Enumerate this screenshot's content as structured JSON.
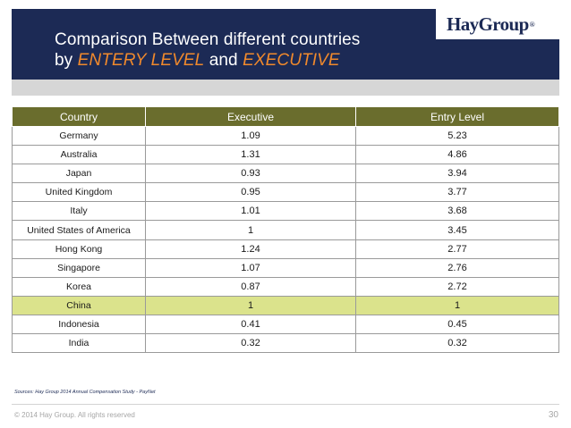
{
  "slide": {
    "title_line1": "Comparison Between different countries",
    "title_prefix": "by ",
    "title_em1": "ENTERY LEVEL",
    "title_mid": " and ",
    "title_em2": "EXECUTIVE",
    "logo_text": "HayGroup",
    "logo_mark": "®"
  },
  "table": {
    "headers": [
      "Country",
      "Executive",
      "Entry Level"
    ],
    "rows": [
      {
        "country": "Germany",
        "executive": "1.09",
        "entry": "5.23"
      },
      {
        "country": "Australia",
        "executive": "1.31",
        "entry": "4.86"
      },
      {
        "country": "Japan",
        "executive": "0.93",
        "entry": "3.94"
      },
      {
        "country": "United Kingdom",
        "executive": "0.95",
        "entry": "3.77"
      },
      {
        "country": "Italy",
        "executive": "1.01",
        "entry": "3.68"
      },
      {
        "country": "United States of America",
        "executive": "1",
        "entry": "3.45"
      },
      {
        "country": "Hong Kong",
        "executive": "1.24",
        "entry": "2.77"
      },
      {
        "country": "Singapore",
        "executive": "1.07",
        "entry": "2.76"
      },
      {
        "country": "Korea",
        "executive": "0.87",
        "entry": "2.72"
      },
      {
        "country": "China",
        "executive": "1",
        "entry": "1"
      },
      {
        "country": "Indonesia",
        "executive": "0.41",
        "entry": "0.45"
      },
      {
        "country": "India",
        "executive": "0.32",
        "entry": "0.32"
      }
    ]
  },
  "footer": {
    "source": "Sources: Hay Group 2014 Annual Compensation Study - PayNet",
    "copyright": "© 2014 Hay Group. All rights reserved",
    "page_number": "30"
  },
  "colors": {
    "header_bg": "#1c2a55",
    "accent_orange": "#f0892c",
    "table_header_bg": "#6a6d2d",
    "highlight_row": "#dbe38c"
  }
}
